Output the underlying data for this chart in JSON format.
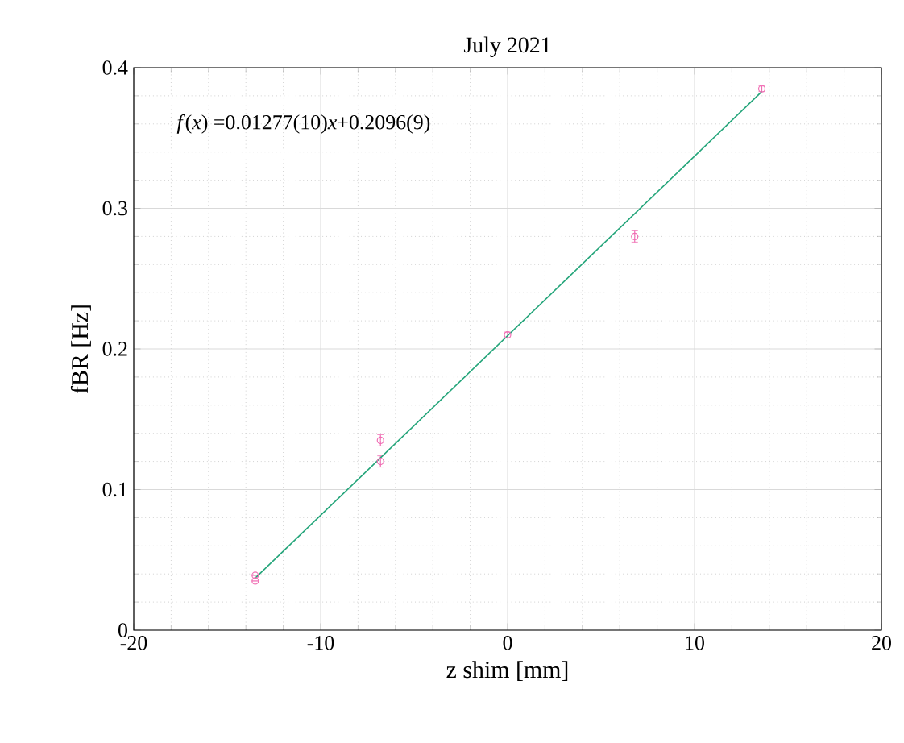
{
  "chart_data": {
    "type": "scatter",
    "title": "July 2021",
    "xlabel": "z shim [mm]",
    "ylabel": "fBR [Hz]",
    "annotations": [
      "*f*(*x*) =0.01277(10)*x*+0.2096(9)"
    ],
    "xlim": [
      -20,
      20
    ],
    "ylim": [
      0,
      0.4
    ],
    "xticks": [
      -20,
      -10,
      0,
      10,
      20
    ],
    "yticks": [
      0,
      0.1,
      0.2,
      0.3,
      0.4
    ],
    "grid": true,
    "series": [
      {
        "color": "#f06eb4",
        "marker": "circle",
        "x": [
          -13.5,
          -13.5,
          -6.8,
          -6.8,
          0,
          6.8,
          13.6
        ],
        "values": [
          0.039,
          0.035,
          0.135,
          0.12,
          0.21,
          0.28,
          0.385
        ],
        "errors": [
          null,
          null,
          0.004,
          0.004,
          0.002,
          0.004,
          0.002
        ]
      },
      {
        "type": "line",
        "color": "#24a57a",
        "x": [
          -13.5,
          13.6
        ],
        "values": [
          0.037,
          0.383
        ]
      }
    ]
  }
}
